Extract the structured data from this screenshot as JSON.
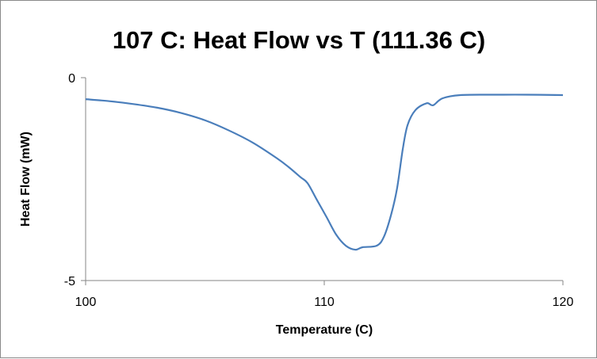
{
  "chart_data": {
    "type": "line",
    "title": "107 C: Heat Flow vs T (111.36 C)",
    "xlabel": "Temperature (C)",
    "ylabel": "Heat Flow (mW)",
    "xlim": [
      100,
      120
    ],
    "ylim": [
      -5,
      0
    ],
    "x_ticks": [
      100,
      110,
      120
    ],
    "x_tick_labels": [
      "100",
      "110",
      "120"
    ],
    "y_ticks": [
      0,
      -5
    ],
    "y_tick_labels": [
      "0",
      "-5"
    ],
    "grid": false,
    "legend": "none",
    "series": [
      {
        "name": "Heat Flow",
        "color": "#4a7ebb",
        "x": [
          100,
          101,
          102,
          103,
          104,
          105,
          106,
          107,
          108,
          108.5,
          109,
          109.3,
          109.67,
          110.1,
          110.5,
          110.9,
          111.3,
          111.6,
          112.2,
          112.5,
          112.8,
          113.05,
          113.29,
          113.49,
          113.82,
          114.29,
          114.56,
          114.95,
          115.7,
          117,
          118.5,
          120
        ],
        "y": [
          -0.53,
          -0.58,
          -0.65,
          -0.74,
          -0.87,
          -1.05,
          -1.3,
          -1.6,
          -1.98,
          -2.2,
          -2.45,
          -2.6,
          -2.99,
          -3.44,
          -3.87,
          -4.14,
          -4.24,
          -4.18,
          -4.14,
          -3.92,
          -3.38,
          -2.73,
          -1.76,
          -1.17,
          -0.8,
          -0.63,
          -0.68,
          -0.51,
          -0.43,
          -0.42,
          -0.42,
          -0.43
        ]
      }
    ]
  }
}
